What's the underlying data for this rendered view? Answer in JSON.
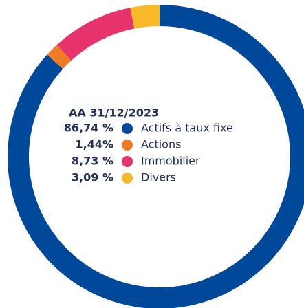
{
  "chart_data": {
    "type": "donut",
    "title": "AA 31/12/2023",
    "categories": [
      "Actifs à taux fixe",
      "Actions",
      "Immobilier",
      "Divers"
    ],
    "values": [
      86.74,
      1.44,
      8.73,
      3.09
    ],
    "value_labels": [
      "86,74 %",
      "1,44%",
      "8,73 %",
      "3,09 %"
    ],
    "colors": [
      "#00489a",
      "#f07b22",
      "#e6336c",
      "#f8b928"
    ]
  }
}
